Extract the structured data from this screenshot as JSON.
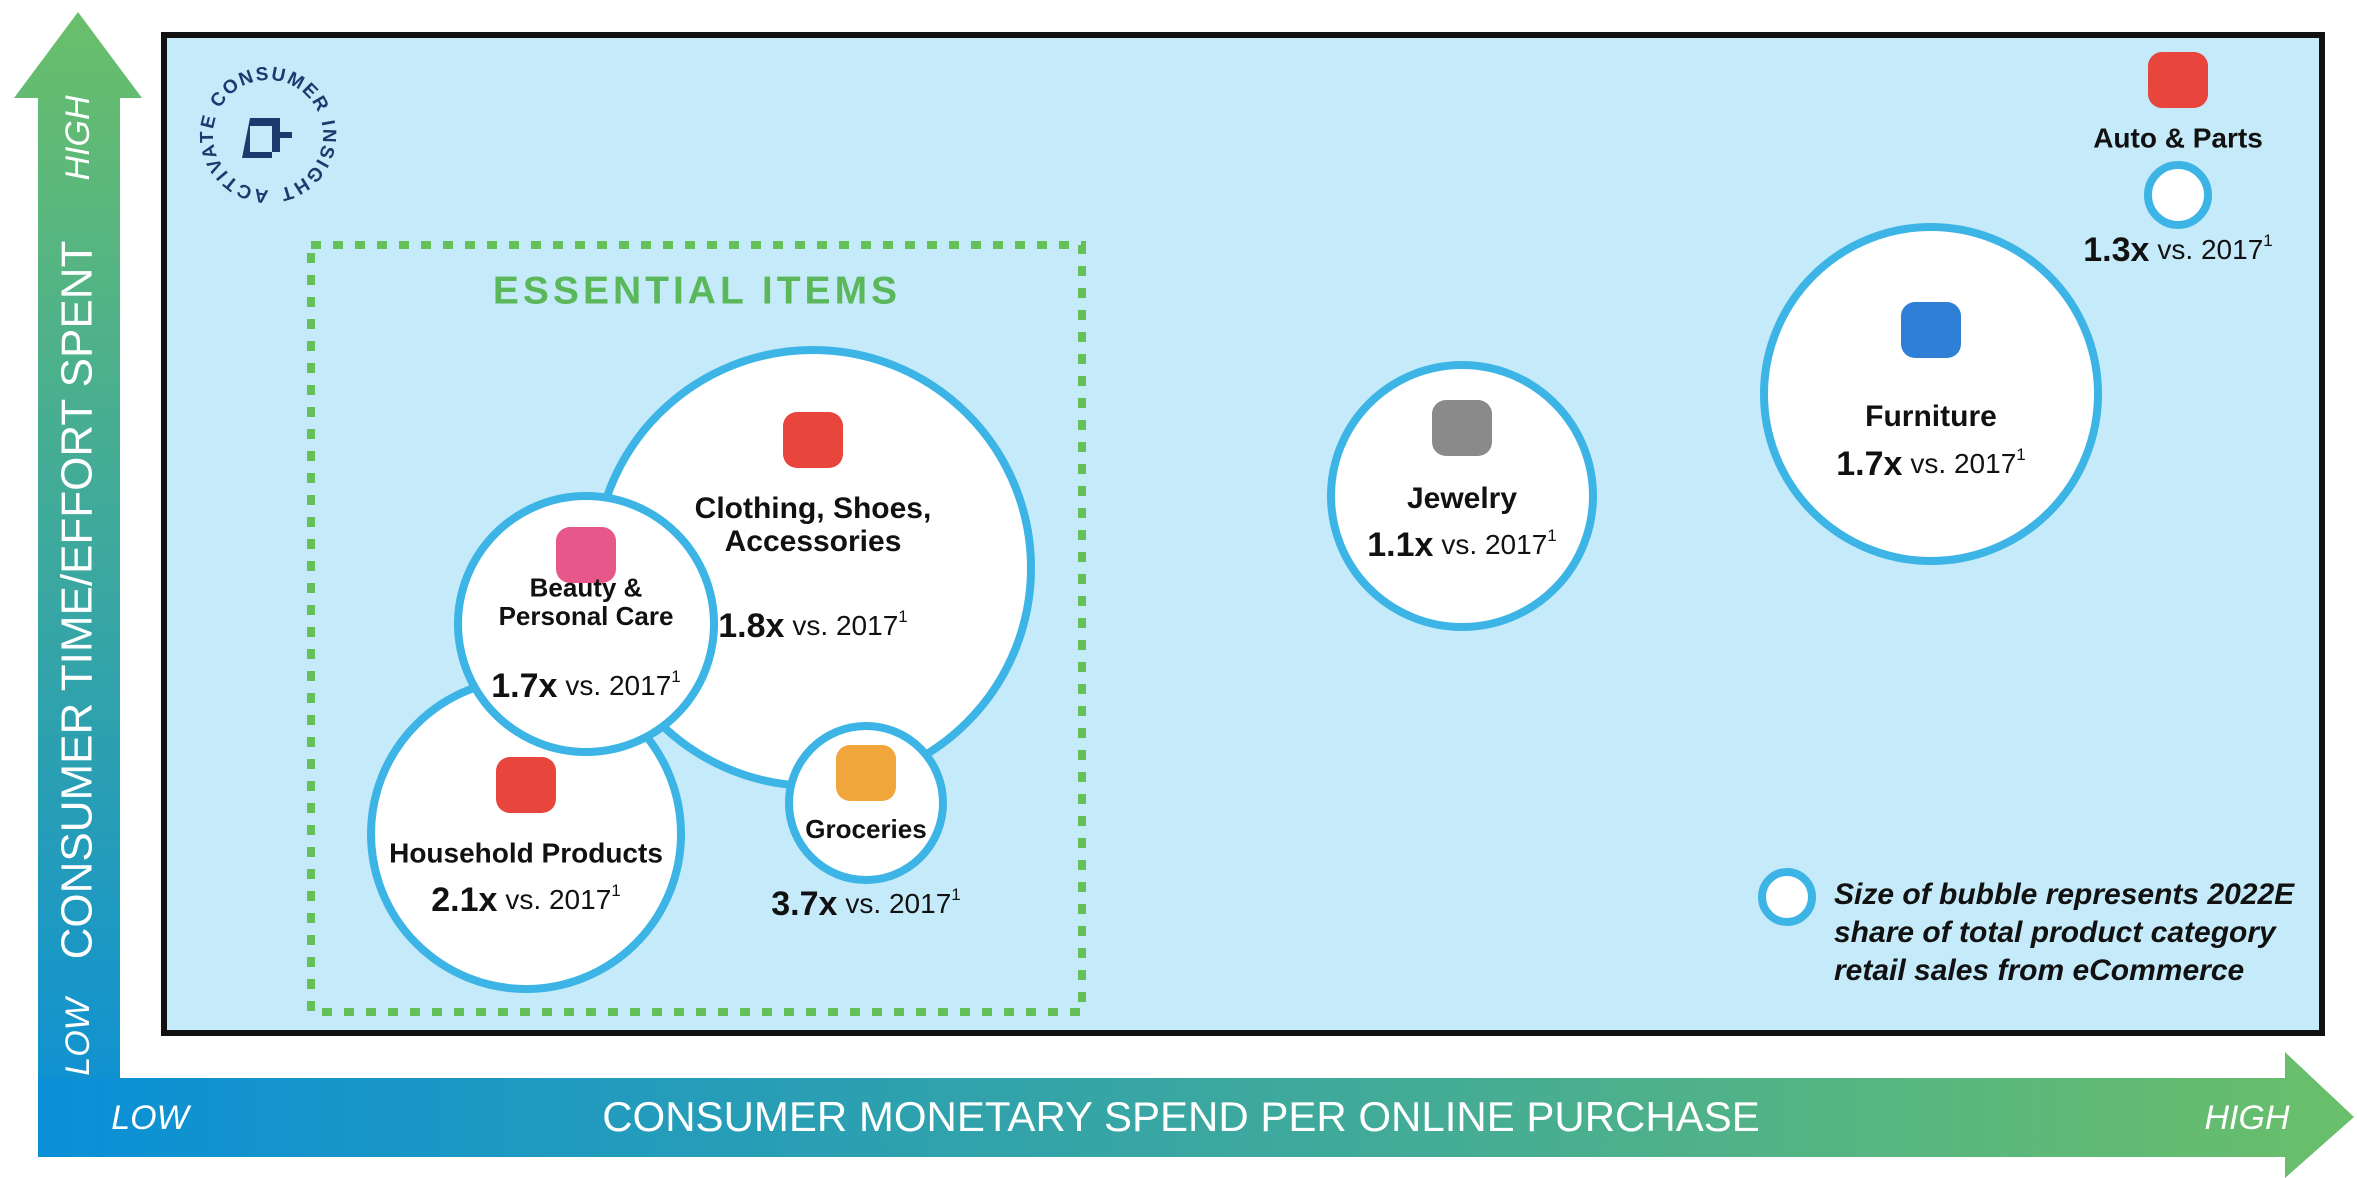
{
  "logo": {
    "text": "ACTIVATE CONSUMER INSIGHT"
  },
  "y_axis": {
    "title": "CONSUMER TIME/EFFORT SPENT",
    "high": "HIGH",
    "low": "LOW"
  },
  "x_axis": {
    "title": "CONSUMER MONETARY SPEND PER ONLINE PURCHASE",
    "low": "LOW",
    "high": "HIGH"
  },
  "group": {
    "title": "ESSENTIAL ITEMS"
  },
  "bubbles": [
    {
      "label": [
        "Clothing, Shoes,",
        "Accessories"
      ],
      "growth": "1.8x",
      "comparison": "vs. 2017",
      "footnote": "1"
    },
    {
      "label": [
        "Household Products"
      ],
      "growth": "2.1x",
      "comparison": "vs. 2017",
      "footnote": "1"
    },
    {
      "label": [
        "Beauty &",
        "Personal Care"
      ],
      "growth": "1.7x",
      "comparison": "vs. 2017",
      "footnote": "1"
    },
    {
      "label": [
        "Groceries"
      ],
      "growth": "3.7x",
      "comparison": "vs. 2017",
      "footnote": "1"
    },
    {
      "label": [
        "Jewelry"
      ],
      "growth": "1.1x",
      "comparison": "vs. 2017",
      "footnote": "1"
    },
    {
      "label": [
        "Furniture"
      ],
      "growth": "1.7x",
      "comparison": "vs. 2017",
      "footnote": "1"
    },
    {
      "label": [
        "Auto & Parts"
      ],
      "growth": "1.3x",
      "comparison": "vs. 2017",
      "footnote": "1"
    }
  ],
  "legend": {
    "lines": [
      "Size of bubble represents 2022E",
      "share of total product category",
      "retail sales from eCommerce"
    ]
  }
}
